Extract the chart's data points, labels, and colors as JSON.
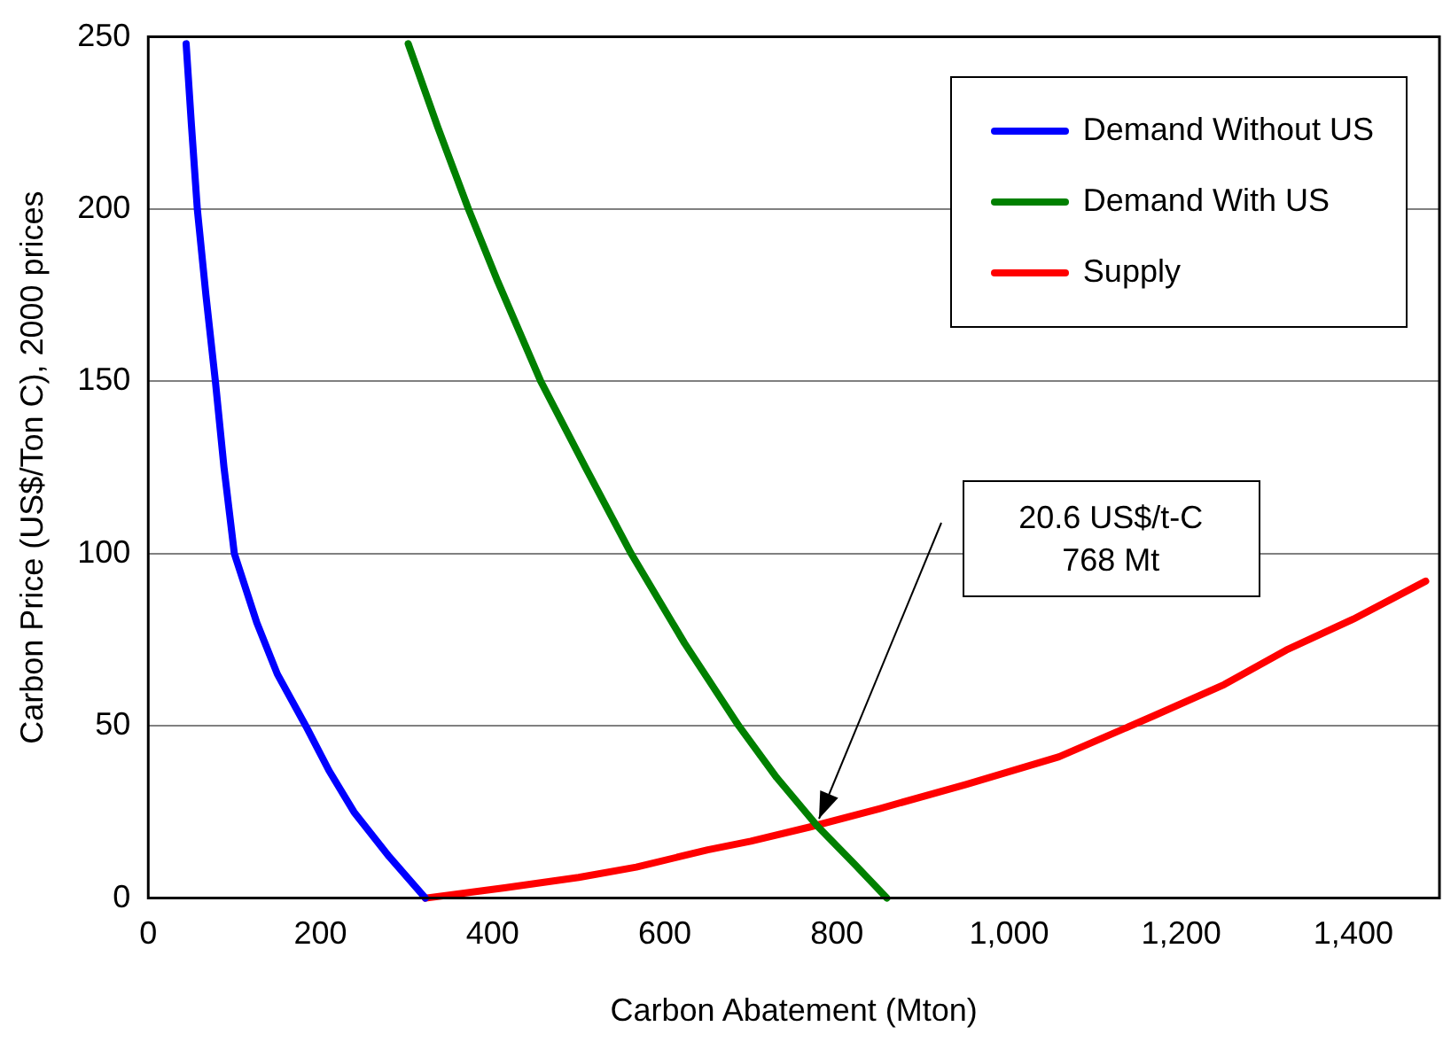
{
  "chart_data": {
    "type": "line",
    "xlabel": "Carbon Abatement (Mton)",
    "ylabel": "Carbon Price (US$/Ton C), 2000 prices",
    "xlim": [
      0,
      1500
    ],
    "xticks": [
      0,
      200,
      400,
      600,
      800,
      {
        "value": 1000,
        "label": "1,000"
      },
      {
        "value": 1200,
        "label": "1,200"
      },
      {
        "value": 1400,
        "label": "1,400"
      }
    ],
    "ylim": [
      0,
      250
    ],
    "yticks": [
      0,
      50,
      100,
      150,
      200,
      250
    ],
    "grid": "y",
    "legend": "top right",
    "marker": "none",
    "line_style": "solid",
    "series": [
      {
        "name": "Demand Without US",
        "color": "#0000ff",
        "x": [
          44,
          50,
          57,
          67,
          78,
          88,
          100,
          126,
          150,
          183,
          210,
          239,
          280,
          322
        ],
        "values": [
          248,
          225,
          200,
          175,
          150,
          125,
          100,
          80,
          65,
          50,
          37,
          25,
          12,
          0
        ]
      },
      {
        "name": "Demand With US",
        "color": "#008000",
        "x": [
          302,
          336,
          372,
          406,
          456,
          508,
          561,
          623,
          686,
          730,
          777,
          820,
          858
        ],
        "values": [
          248,
          224,
          200,
          179,
          150,
          125,
          100,
          74,
          50,
          35,
          21,
          10,
          0
        ]
      },
      {
        "name": "Supply",
        "color": "#ff0000",
        "x": [
          322,
          414,
          500,
          567,
          650,
          700,
          768,
          850,
          950,
          1058,
          1169,
          1250,
          1322,
          1400,
          1484
        ],
        "values": [
          0,
          3,
          6,
          9,
          14,
          16.5,
          20.6,
          26,
          33,
          41,
          53,
          62,
          72,
          81,
          92
        ]
      }
    ],
    "annotations": [
      "20.6 US$/t-C\n768 Mt"
    ]
  }
}
